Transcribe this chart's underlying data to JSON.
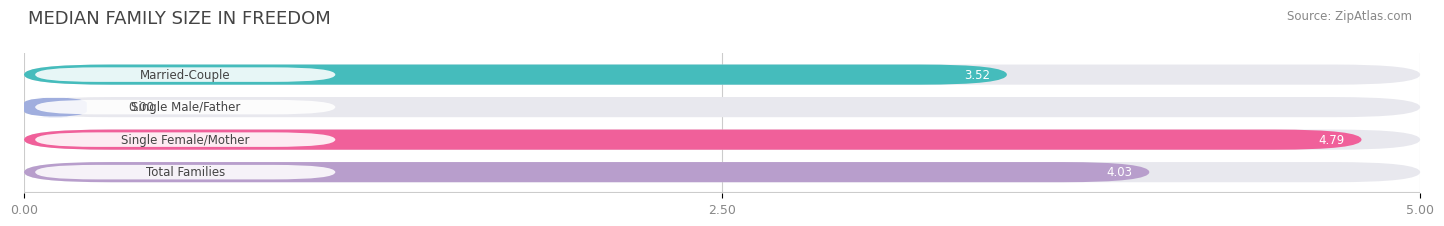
{
  "title": "MEDIAN FAMILY SIZE IN FREEDOM",
  "source": "Source: ZipAtlas.com",
  "categories": [
    "Married-Couple",
    "Single Male/Father",
    "Single Female/Mother",
    "Total Families"
  ],
  "values": [
    3.52,
    0.0,
    4.79,
    4.03
  ],
  "bar_colors": [
    "#45BCBC",
    "#A0AEDE",
    "#F0609A",
    "#B89ECC"
  ],
  "bg_track_color": "#E8E8EE",
  "xlim_max": 5.0,
  "xticks": [
    0.0,
    2.5,
    5.0
  ],
  "xtick_labels": [
    "0.00",
    "2.50",
    "5.00"
  ],
  "bar_height": 0.62,
  "label_fontsize": 8.5,
  "value_fontsize": 8.5,
  "title_fontsize": 13,
  "source_fontsize": 8.5
}
